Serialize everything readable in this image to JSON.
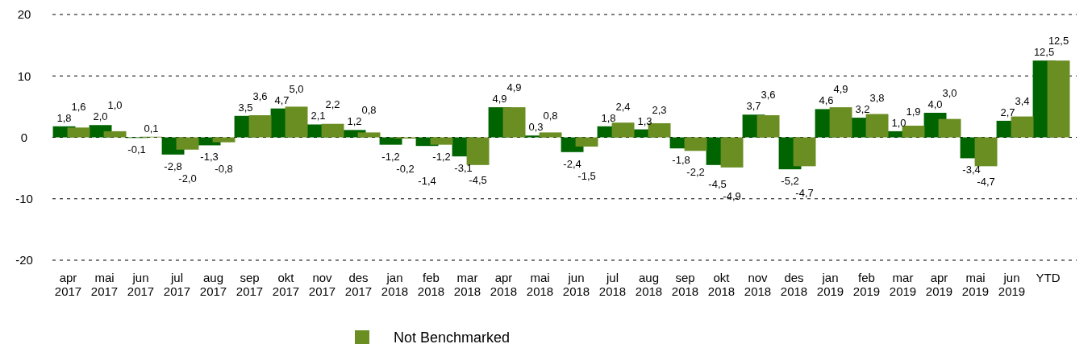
{
  "chart_data": {
    "type": "bar",
    "categories": [
      "apr 2017",
      "mai 2017",
      "jun 2017",
      "jul 2017",
      "aug 2017",
      "sep 2017",
      "okt 2017",
      "nov 2017",
      "des 2017",
      "jan 2018",
      "feb 2018",
      "mar 2018",
      "apr 2018",
      "mai 2018",
      "jun 2018",
      "jul 2018",
      "aug 2018",
      "sep 2018",
      "okt 2018",
      "nov 2018",
      "des 2018",
      "jan 2019",
      "feb 2019",
      "mar 2019",
      "apr 2019",
      "mai 2019",
      "jun 2019",
      "YTD"
    ],
    "series": [
      {
        "color": "#006400",
        "values": [
          1.8,
          2.0,
          -0.1,
          -2.8,
          -1.3,
          3.5,
          4.7,
          2.1,
          1.2,
          -1.2,
          -1.4,
          -3.1,
          4.9,
          0.3,
          -2.4,
          1.8,
          1.3,
          -1.8,
          -4.5,
          3.7,
          -5.2,
          4.6,
          3.2,
          1.0,
          4.0,
          -3.4,
          2.7,
          12.5
        ],
        "value_labels": [
          "1,8",
          "2,0",
          "-0,1",
          "-2,8",
          "-1,3",
          "3,5",
          "4,7",
          "2,1",
          "1,2",
          "-1,2",
          "-1,4",
          "-3,1",
          "4,9",
          "0,3",
          "-2,4",
          "1,8",
          "1,3",
          "-1,8",
          "-4,5",
          "3,7",
          "-5,2",
          "4,6",
          "3,2",
          "1,0",
          "4,0",
          "-3,4",
          "2,7",
          "12,5"
        ]
      },
      {
        "name": "Not Benchmarked",
        "color": "#6b8e23",
        "values": [
          1.6,
          1.0,
          0.1,
          -2.0,
          -0.8,
          3.6,
          5.0,
          2.2,
          0.8,
          -0.2,
          -1.2,
          -4.5,
          4.9,
          0.8,
          -1.5,
          2.4,
          2.3,
          -2.2,
          -4.9,
          3.6,
          -4.7,
          4.9,
          3.8,
          1.9,
          3.0,
          -4.7,
          3.4,
          12.5
        ],
        "value_labels": [
          "1,6",
          "1,0",
          "0,1",
          "-2,0",
          "-0,8",
          "3,6",
          "5,0",
          "2,2",
          "0,8",
          "-0,2",
          "-1,2",
          "-4,5",
          "4,9",
          "0,8",
          "-1,5",
          "2,4",
          "2,3",
          "-2,2",
          "-4,9",
          "3,6",
          "-4,7",
          "4,9",
          "3,8",
          "1,9",
          "3,0",
          "-4,7",
          "3,4",
          "12,5"
        ]
      }
    ],
    "ylim": [
      -20,
      20
    ],
    "yticks": [
      -20,
      -10,
      0,
      10,
      20
    ],
    "grid": "y",
    "legend": "bottom"
  }
}
